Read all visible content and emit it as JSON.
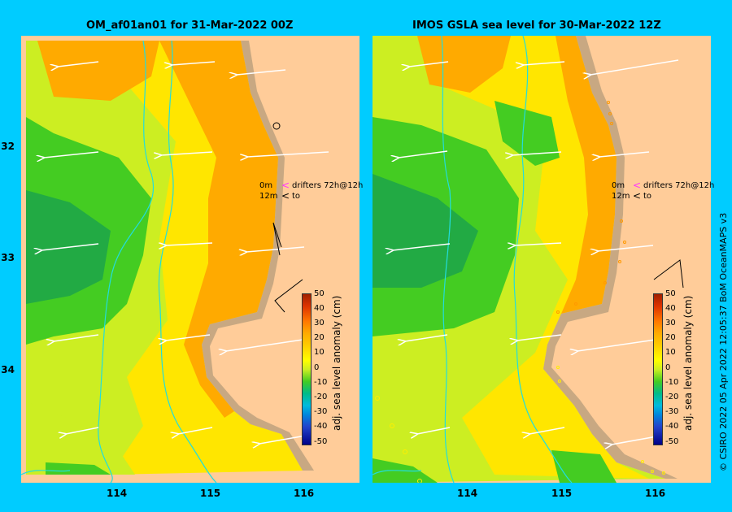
{
  "titles": {
    "left": "OM_af01an01 for 31-Mar-2022 00Z",
    "right": "IMOS GSLA sea level  for 30-Mar-2022 12Z"
  },
  "y_ticks": [
    "32",
    "33",
    "34"
  ],
  "x_ticks": [
    "114",
    "115",
    "116"
  ],
  "legend": {
    "line1_depth": "0m",
    "line1_text": "drifters 72h@12h",
    "line2_depth": "12m",
    "line2_text": "to",
    "line1_color": "#ff33ff",
    "line2_color": "#000000"
  },
  "colorbar": {
    "label": "adj. sea level anomaly (cm)",
    "ticks": [
      "50",
      "40",
      "30",
      "20",
      "10",
      "0",
      "-10",
      "-20",
      "-30",
      "-40",
      "-50"
    ]
  },
  "credit": "© CSIRO 2022   05 Apr 2022 12:05:37 BoM OceanMAPS v3",
  "colors": {
    "background": "#00ccff",
    "land": "#ffcc99",
    "coast_fill": "#c8a882",
    "bathymetry": "#22dddd",
    "field_orange": "#ffaa00",
    "field_yellow": "#ffe600",
    "field_light_green": "#ccee22",
    "field_green": "#44cc22"
  },
  "icons": [
    "velocity-arrow-icon",
    "drifter-marker-icon"
  ]
}
